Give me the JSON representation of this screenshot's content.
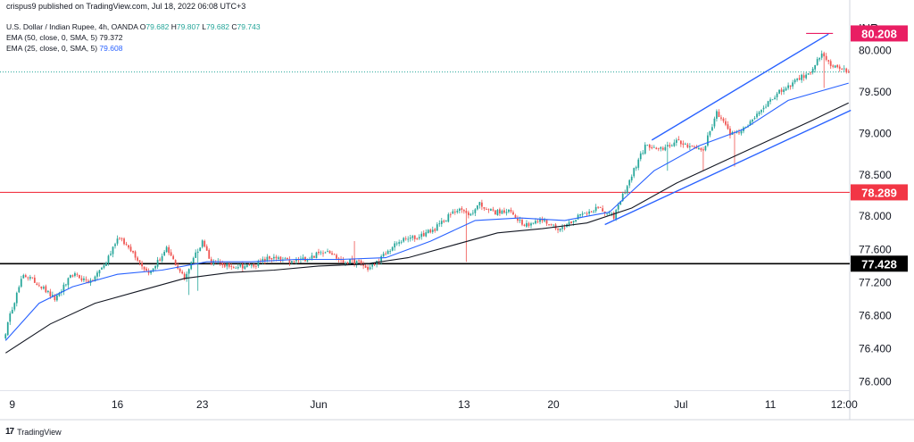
{
  "publisher": "crispus9 published on TradingView.com, Jul 18, 2022 06:08 UTC+3",
  "legend": {
    "symbol": "U.S. Dollar / Indian Rupee, 4h, OANDA",
    "o_label": "O",
    "o": "79.682",
    "h_label": "H",
    "h": "79.807",
    "l_label": "L",
    "l": "79.682",
    "c_label": "C",
    "c": "79.743",
    "ema50_label": "EMA (50, close, 0, SMA, 5)",
    "ema50_value": "79.372",
    "ema25_label": "EMA (25, close, 0, SMA, 5)",
    "ema25_value": "79.608"
  },
  "currency": "INR",
  "footer": {
    "logo": "17",
    "brand": "TradingView"
  },
  "colors": {
    "up": "#26a69a",
    "down": "#ef5350",
    "ema50": "#131722",
    "ema25": "#2962ff",
    "resistance": "#f23645",
    "support": "#000000",
    "channel": "#2962ff",
    "target": "#e91e63",
    "last_price": "#26a69a"
  },
  "chart_data": {
    "type": "candlestick",
    "title": "",
    "xlabel": "",
    "ylabel": "",
    "ylim": [
      75.9,
      80.45
    ],
    "y_ticks": [
      "76.000",
      "76.400",
      "76.800",
      "77.200",
      "77.600",
      "78.000",
      "78.500",
      "79.000",
      "79.500",
      "80.000"
    ],
    "y_tick_values": [
      76.0,
      76.4,
      76.8,
      77.2,
      77.6,
      78.0,
      78.5,
      79.0,
      79.5,
      80.0
    ],
    "x_ticks": [
      "9",
      "16",
      "23",
      "Jun",
      "13",
      "20",
      "Jul",
      "11",
      "12:00"
    ],
    "x_tick_bar_index": [
      3,
      50,
      88,
      140,
      205,
      245,
      302,
      342,
      375
    ],
    "n_bars": 378,
    "labels": [
      {
        "value": 80.208,
        "text": "80.208",
        "color": "#e91e63"
      },
      {
        "value": 78.289,
        "text": "78.289",
        "color": "#f23645"
      },
      {
        "value": 77.428,
        "text": "77.428",
        "color": "#000000"
      }
    ],
    "horizontal_lines": [
      {
        "name": "resistance",
        "value": 78.289,
        "color": "#f23645"
      },
      {
        "name": "support",
        "value": 77.428,
        "color": "#000000"
      },
      {
        "name": "last-price",
        "value": 79.743,
        "color": "#26a69a",
        "dotted": true
      }
    ],
    "channel": {
      "upper": [
        [
          289,
          78.92
        ],
        [
          368,
          80.2
        ]
      ],
      "lower": [
        [
          268,
          77.9
        ],
        [
          378,
          79.28
        ]
      ]
    },
    "target_line": {
      "value": 80.208,
      "from": 358,
      "to": 370
    },
    "anchors": [
      [
        0,
        76.6,
        76.1,
        77.0
      ],
      [
        3,
        76.9,
        76.6,
        77.05
      ],
      [
        8,
        77.3,
        76.9,
        77.5
      ],
      [
        14,
        77.2,
        77.0,
        77.35
      ],
      [
        22,
        77.0,
        76.9,
        77.2
      ],
      [
        30,
        77.3,
        77.1,
        77.45
      ],
      [
        38,
        77.2,
        77.1,
        77.4
      ],
      [
        45,
        77.45,
        77.2,
        77.55
      ],
      [
        50,
        77.75,
        77.6,
        77.8
      ],
      [
        56,
        77.6,
        77.5,
        77.7
      ],
      [
        64,
        77.3,
        77.2,
        77.45
      ],
      [
        72,
        77.6,
        77.4,
        77.7
      ],
      [
        80,
        77.25,
        77.15,
        77.35
      ],
      [
        84,
        77.5,
        77.3,
        77.6
      ],
      [
        88,
        77.7,
        77.6,
        77.75
      ],
      [
        92,
        77.45,
        77.35,
        77.5
      ],
      [
        100,
        77.4,
        77.3,
        77.5
      ],
      [
        110,
        77.4,
        77.3,
        77.5
      ],
      [
        118,
        77.5,
        77.4,
        77.55
      ],
      [
        128,
        77.45,
        77.4,
        77.55
      ],
      [
        136,
        77.5,
        77.4,
        77.6
      ],
      [
        144,
        77.6,
        77.5,
        77.65
      ],
      [
        150,
        77.45,
        77.4,
        77.5
      ],
      [
        158,
        77.45,
        77.35,
        77.55
      ],
      [
        162,
        77.35,
        77.25,
        77.4
      ],
      [
        168,
        77.5,
        77.4,
        77.6
      ],
      [
        176,
        77.7,
        77.6,
        77.8
      ],
      [
        184,
        77.75,
        77.65,
        77.8
      ],
      [
        192,
        77.85,
        77.75,
        77.95
      ],
      [
        198,
        78.0,
        77.85,
        78.1
      ],
      [
        203,
        78.1,
        78.0,
        78.3
      ],
      [
        207,
        78.0,
        77.95,
        78.3
      ],
      [
        212,
        78.15,
        78.05,
        78.2
      ],
      [
        218,
        78.05,
        77.95,
        78.1
      ],
      [
        226,
        78.05,
        77.95,
        78.1
      ],
      [
        232,
        77.9,
        77.85,
        78.0
      ],
      [
        240,
        77.95,
        77.85,
        78.05
      ],
      [
        248,
        77.85,
        77.8,
        77.95
      ],
      [
        256,
        78.0,
        77.9,
        78.05
      ],
      [
        264,
        78.1,
        78.0,
        78.15
      ],
      [
        272,
        78.0,
        77.95,
        78.1
      ],
      [
        280,
        78.5,
        78.35,
        78.6
      ],
      [
        286,
        78.85,
        78.7,
        78.95
      ],
      [
        292,
        78.8,
        78.75,
        78.9
      ],
      [
        300,
        78.9,
        78.8,
        79.0
      ],
      [
        306,
        78.85,
        78.75,
        78.95
      ],
      [
        312,
        78.8,
        78.7,
        78.9
      ],
      [
        318,
        79.25,
        79.1,
        79.35
      ],
      [
        324,
        79.0,
        78.9,
        79.1
      ],
      [
        330,
        79.05,
        78.95,
        79.15
      ],
      [
        338,
        79.3,
        79.2,
        79.4
      ],
      [
        346,
        79.5,
        79.4,
        79.6
      ],
      [
        354,
        79.65,
        79.55,
        79.75
      ],
      [
        360,
        79.75,
        79.65,
        79.85
      ],
      [
        365,
        79.95,
        79.85,
        80.0
      ],
      [
        370,
        79.8,
        79.7,
        79.85
      ],
      [
        377,
        79.74,
        79.68,
        79.81
      ]
    ],
    "spikes": [
      [
        26,
        77.2,
        77.05
      ],
      [
        82,
        77.15,
        77.05
      ],
      [
        86,
        77.2,
        77.1
      ],
      [
        156,
        77.55,
        77.7
      ],
      [
        206,
        78.1,
        77.45
      ],
      [
        296,
        78.9,
        78.55
      ],
      [
        312,
        78.7,
        78.55
      ],
      [
        326,
        78.9,
        78.6
      ],
      [
        366,
        79.9,
        79.55
      ]
    ],
    "ema50_points": [
      [
        0,
        76.35
      ],
      [
        20,
        76.7
      ],
      [
        40,
        76.95
      ],
      [
        60,
        77.1
      ],
      [
        80,
        77.25
      ],
      [
        100,
        77.32
      ],
      [
        120,
        77.35
      ],
      [
        140,
        77.4
      ],
      [
        160,
        77.42
      ],
      [
        180,
        77.5
      ],
      [
        200,
        77.65
      ],
      [
        220,
        77.8
      ],
      [
        240,
        77.85
      ],
      [
        260,
        77.92
      ],
      [
        280,
        78.1
      ],
      [
        300,
        78.4
      ],
      [
        320,
        78.65
      ],
      [
        340,
        78.9
      ],
      [
        360,
        79.15
      ],
      [
        377,
        79.37
      ]
    ],
    "ema25_points": [
      [
        0,
        76.5
      ],
      [
        15,
        76.95
      ],
      [
        30,
        77.15
      ],
      [
        50,
        77.3
      ],
      [
        70,
        77.35
      ],
      [
        90,
        77.45
      ],
      [
        110,
        77.45
      ],
      [
        130,
        77.48
      ],
      [
        150,
        77.48
      ],
      [
        170,
        77.5
      ],
      [
        190,
        77.7
      ],
      [
        210,
        77.95
      ],
      [
        230,
        77.98
      ],
      [
        250,
        77.95
      ],
      [
        270,
        78.05
      ],
      [
        290,
        78.55
      ],
      [
        310,
        78.85
      ],
      [
        330,
        79.05
      ],
      [
        350,
        79.4
      ],
      [
        377,
        79.608
      ]
    ]
  }
}
